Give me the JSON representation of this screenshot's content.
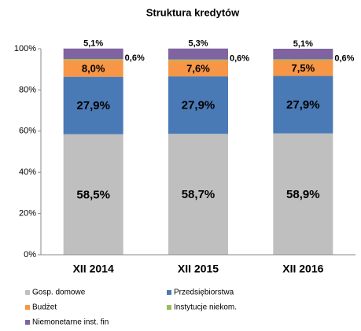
{
  "chart_data": {
    "type": "stacked_bar",
    "title": "Struktura kredytów",
    "categories": [
      "XII 2014",
      "XII 2015",
      "XII 2016"
    ],
    "series": [
      {
        "name": "Gosp. domowe",
        "color": "#bfbfbf",
        "values": [
          58.5,
          58.7,
          58.9
        ],
        "value_labels": [
          "58,5%",
          "58,7%",
          "58,9%"
        ]
      },
      {
        "name": "Przedsiębiorstwa",
        "color": "#4a7ab5",
        "values": [
          27.9,
          27.9,
          27.9
        ],
        "value_labels": [
          "27,9%",
          "27,9%",
          "27,9%"
        ]
      },
      {
        "name": "Budżet",
        "color": "#f79646",
        "values": [
          8.0,
          7.6,
          7.5
        ],
        "value_labels": [
          "8,0%",
          "7,6%",
          "7,5%"
        ]
      },
      {
        "name": "Instytucje niekom.",
        "color": "#9bbb59",
        "values": [
          0.6,
          0.6,
          0.6
        ],
        "value_labels": [
          "0,6%",
          "0,6%",
          "0,6%"
        ]
      },
      {
        "name": "Niemonetarne inst. fin",
        "color": "#8064a2",
        "values": [
          5.1,
          5.3,
          5.1
        ],
        "value_labels": [
          "5,1%",
          "5,3%",
          "5,1%"
        ]
      }
    ],
    "ylim": [
      0,
      100
    ],
    "yticks": [
      {
        "value": 0,
        "label": "0%"
      },
      {
        "value": 20,
        "label": "20%"
      },
      {
        "value": 40,
        "label": "40%"
      },
      {
        "value": 60,
        "label": "60%"
      },
      {
        "value": 80,
        "label": "80%"
      },
      {
        "value": 100,
        "label": "100%"
      }
    ],
    "grid": false
  }
}
